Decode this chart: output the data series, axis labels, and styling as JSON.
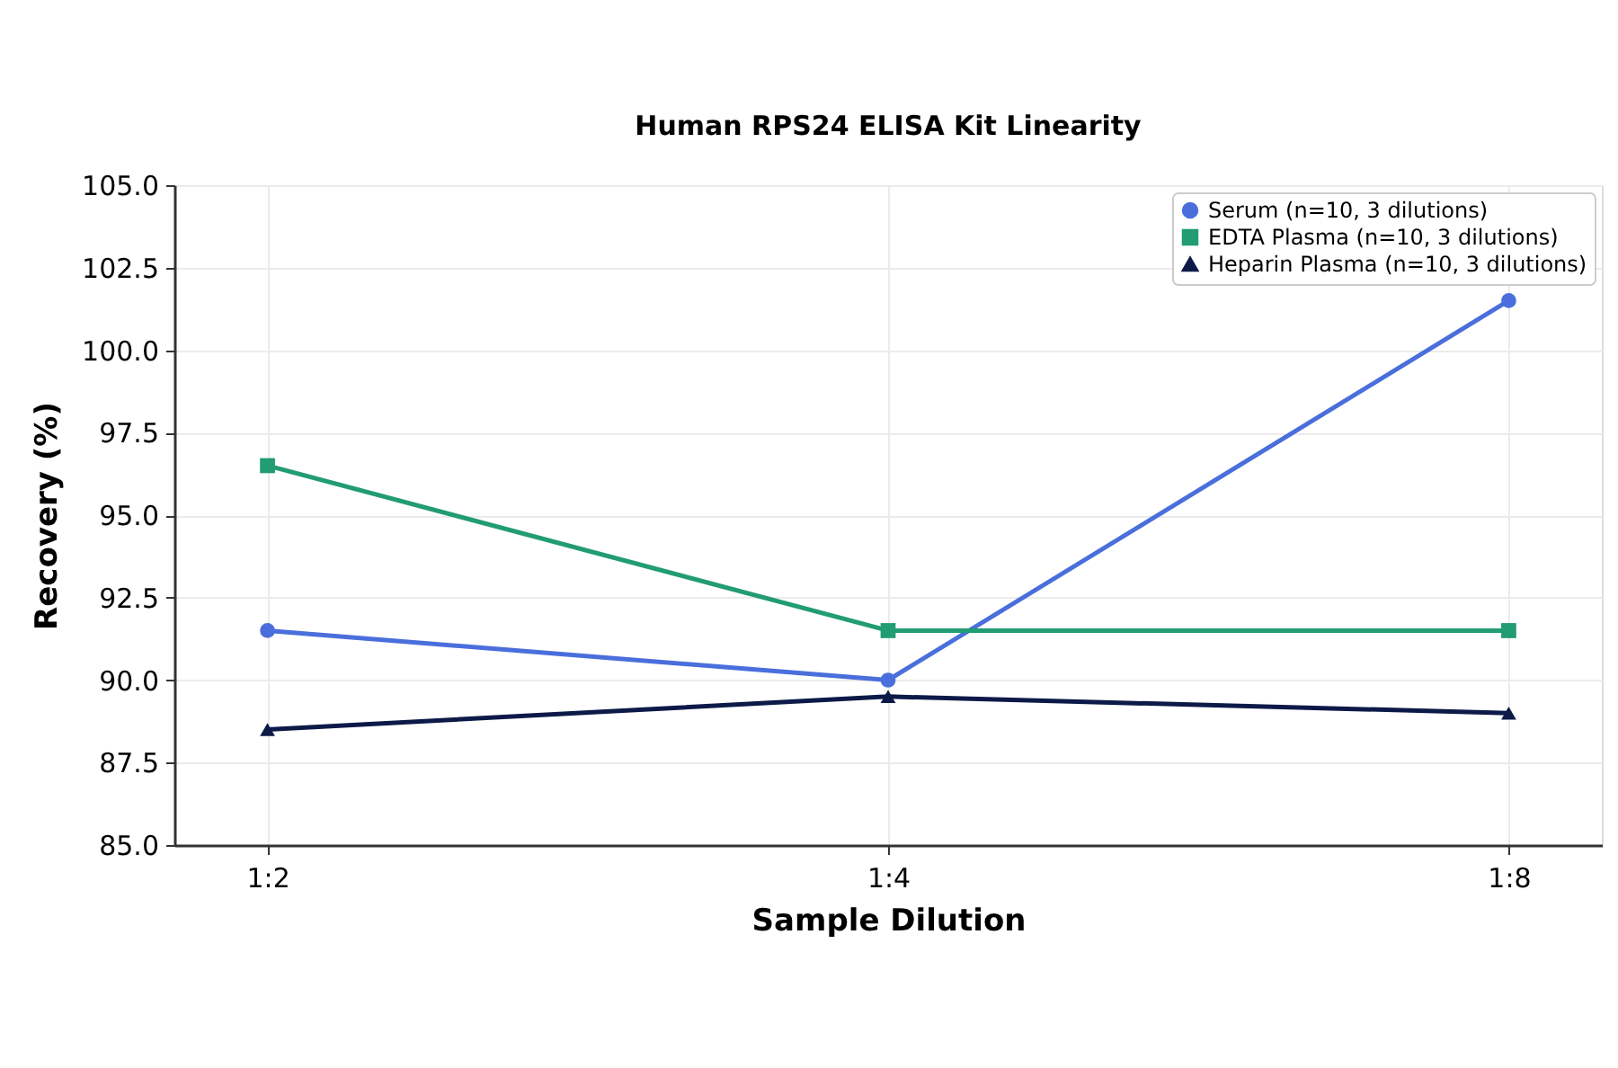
{
  "chart_data": {
    "type": "line",
    "title": "Human RPS24 ELISA Kit Linearity",
    "xlabel": "Sample Dilution",
    "ylabel": "Recovery (%)",
    "categories": [
      "1:2",
      "1:4",
      "1:8"
    ],
    "series": [
      {
        "name": "Serum (n=10, 3 dilutions)",
        "color": "#4a6fdc",
        "marker": "circle",
        "values": [
          91.5,
          90.0,
          101.5
        ]
      },
      {
        "name": "EDTA Plasma (n=10, 3 dilutions)",
        "color": "#229c72",
        "marker": "square",
        "values": [
          96.5,
          91.5,
          91.5
        ]
      },
      {
        "name": "Heparin Plasma (n=10, 3 dilutions)",
        "color": "#0d1a48",
        "marker": "triangle",
        "values": [
          88.5,
          89.5,
          89.0
        ]
      }
    ],
    "ylim": [
      85,
      105
    ],
    "yticks": [
      {
        "value": 85,
        "label": "85.0"
      },
      87.5,
      {
        "value": 90,
        "label": "90.0"
      },
      92.5,
      {
        "value": 95,
        "label": "95.0"
      },
      97.5,
      {
        "value": 100,
        "label": "100.0"
      },
      102.5,
      {
        "value": 105,
        "label": "105.0"
      }
    ],
    "grid": true,
    "legend": "top right",
    "line_style": "solid"
  }
}
